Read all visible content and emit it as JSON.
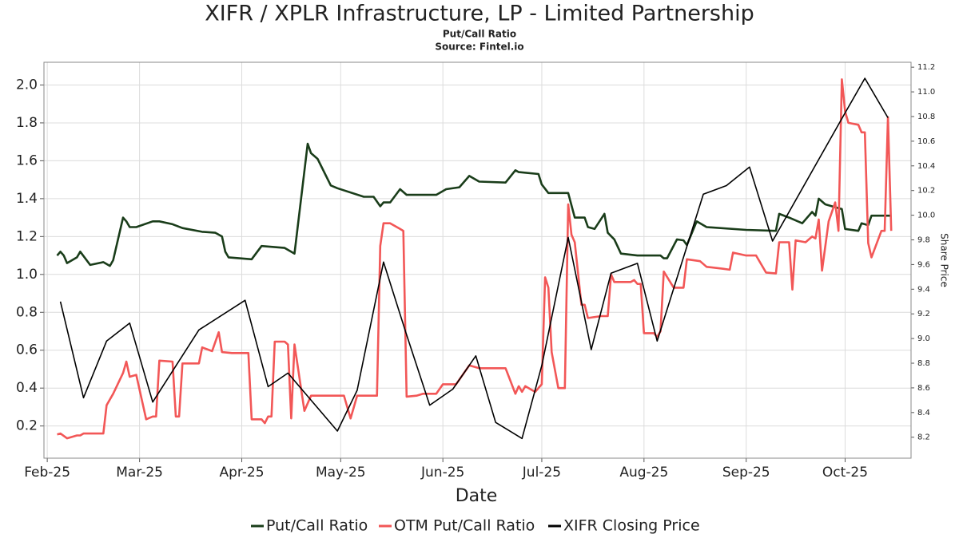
{
  "chart_data": {
    "type": "line",
    "title": "XIFR / XPLR Infrastructure, LP - Limited Partnership",
    "subtitle": "Put/Call Ratio",
    "source": "Source: Fintel.io",
    "x_label": "Date",
    "y2_label": "Share Price",
    "grid": true,
    "legend": "bottom",
    "xlim": [
      -1,
      262
    ],
    "xticks": [
      {
        "value": 0,
        "label": "Feb-25"
      },
      {
        "value": 28,
        "label": "Mar-25"
      },
      {
        "value": 59,
        "label": "Apr-25"
      },
      {
        "value": 89,
        "label": "May-25"
      },
      {
        "value": 120,
        "label": "Jun-25"
      },
      {
        "value": 150,
        "label": "Jul-25"
      },
      {
        "value": 181,
        "label": "Aug-25"
      },
      {
        "value": 212,
        "label": "Sep-25"
      },
      {
        "value": 242,
        "label": "Oct-25"
      }
    ],
    "ylim": [
      0.03,
      2.12
    ],
    "yticks": [
      0.2,
      0.4,
      0.6,
      0.8,
      {
        "value": 1,
        "label": "1.0"
      },
      1.2,
      1.4,
      1.6,
      1.8,
      {
        "value": 2,
        "label": "2.0"
      }
    ],
    "y2lim": [
      8.03,
      11.24
    ],
    "y2ticks": [
      8.2,
      8.4,
      8.6,
      8.8,
      {
        "value": 9,
        "label": "9.0"
      },
      9.2,
      9.4,
      9.6,
      9.8,
      {
        "value": 10,
        "label": "10.0"
      },
      10.2,
      10.4,
      10.6,
      10.8,
      {
        "value": 11,
        "label": "11.0"
      },
      11.2
    ],
    "series": [
      {
        "name": "Put/Call Ratio",
        "color": "#1a3d1a",
        "width": 2.6,
        "x": [
          3,
          4,
          5,
          6,
          9,
          10,
          13,
          17,
          19,
          20,
          23,
          24,
          25,
          27,
          32,
          34,
          38,
          41,
          47,
          51,
          53,
          54,
          55,
          62,
          65,
          72,
          75,
          79,
          80,
          82,
          86,
          88,
          96,
          99,
          101,
          102,
          104,
          107,
          109,
          118,
          121,
          125,
          128,
          131,
          139,
          142,
          143,
          149,
          150,
          152,
          158,
          160,
          163,
          164,
          166,
          169,
          170,
          172,
          174,
          179,
          183,
          186,
          187,
          188,
          191,
          193,
          194,
          197,
          200,
          212,
          221,
          222,
          225,
          229,
          232,
          233,
          234,
          236,
          240,
          241,
          242,
          246,
          247,
          249,
          250,
          256
        ],
        "values": [
          1.1,
          1.12,
          1.1,
          1.06,
          1.09,
          1.12,
          1.05,
          1.065,
          1.045,
          1.075,
          1.3,
          1.28,
          1.25,
          1.25,
          1.28,
          1.28,
          1.265,
          1.245,
          1.225,
          1.22,
          1.2,
          1.12,
          1.09,
          1.08,
          1.15,
          1.14,
          1.11,
          1.69,
          1.64,
          1.61,
          1.47,
          1.455,
          1.41,
          1.41,
          1.36,
          1.38,
          1.38,
          1.45,
          1.42,
          1.42,
          1.45,
          1.46,
          1.52,
          1.49,
          1.485,
          1.55,
          1.54,
          1.53,
          1.475,
          1.43,
          1.43,
          1.3,
          1.3,
          1.25,
          1.24,
          1.32,
          1.22,
          1.185,
          1.11,
          1.1,
          1.1,
          1.1,
          1.085,
          1.085,
          1.185,
          1.18,
          1.155,
          1.28,
          1.25,
          1.235,
          1.23,
          1.32,
          1.3,
          1.27,
          1.33,
          1.31,
          1.4,
          1.37,
          1.35,
          1.345,
          1.24,
          1.23,
          1.27,
          1.26,
          1.31,
          1.31
        ]
      },
      {
        "name": "OTM Put/Call Ratio",
        "color": "#f25757",
        "width": 2.6,
        "x": [
          3,
          4,
          6,
          9,
          10,
          11,
          17,
          18,
          20,
          23,
          24,
          25,
          27,
          30,
          32,
          33,
          34,
          38,
          39,
          40,
          41,
          46,
          47,
          50,
          52,
          53,
          56,
          61,
          62,
          65,
          66,
          67,
          68,
          69,
          72,
          73,
          74,
          75,
          78,
          80,
          90,
          91,
          92,
          94,
          100,
          101,
          102,
          104,
          107,
          108,
          109,
          112,
          114,
          118,
          120,
          124,
          128,
          131,
          139,
          142,
          143,
          144,
          145,
          147,
          148,
          150,
          151,
          152,
          153,
          155,
          157,
          158,
          159,
          160,
          162,
          163,
          164,
          168,
          170,
          171,
          172,
          177,
          178,
          179,
          180,
          181,
          184,
          185,
          186,
          187,
          190,
          191,
          193,
          194,
          198,
          200,
          205,
          207,
          208,
          212,
          215,
          218,
          221,
          222,
          225,
          226,
          227,
          230,
          232,
          233,
          234,
          235,
          237,
          239,
          240,
          241,
          242,
          243,
          246,
          247,
          248,
          249,
          250,
          253,
          254,
          255,
          256
        ],
        "values": [
          0.155,
          0.16,
          0.135,
          0.15,
          0.15,
          0.16,
          0.16,
          0.31,
          0.37,
          0.48,
          0.54,
          0.46,
          0.47,
          0.235,
          0.25,
          0.25,
          0.545,
          0.54,
          0.25,
          0.25,
          0.53,
          0.53,
          0.615,
          0.595,
          0.695,
          0.59,
          0.585,
          0.585,
          0.235,
          0.235,
          0.215,
          0.25,
          0.25,
          0.645,
          0.645,
          0.63,
          0.24,
          0.63,
          0.28,
          0.36,
          0.36,
          0.3,
          0.24,
          0.36,
          0.36,
          1.15,
          1.27,
          1.27,
          1.24,
          1.23,
          0.355,
          0.36,
          0.37,
          0.37,
          0.42,
          0.42,
          0.52,
          0.505,
          0.505,
          0.37,
          0.41,
          0.38,
          0.41,
          0.39,
          0.38,
          0.42,
          0.985,
          0.93,
          0.59,
          0.4,
          0.4,
          1.37,
          1.21,
          1.17,
          0.84,
          0.84,
          0.77,
          0.78,
          0.78,
          1.0,
          0.96,
          0.96,
          0.97,
          0.95,
          0.95,
          0.69,
          0.69,
          0.67,
          0.7,
          1.015,
          0.93,
          0.93,
          0.93,
          1.08,
          1.07,
          1.04,
          1.03,
          1.025,
          1.115,
          1.1,
          1.1,
          1.01,
          1.005,
          1.17,
          1.17,
          0.92,
          1.18,
          1.17,
          1.2,
          1.19,
          1.29,
          1.02,
          1.28,
          1.38,
          1.23,
          2.03,
          1.86,
          1.8,
          1.79,
          1.75,
          1.75,
          1.165,
          1.09,
          1.23,
          1.23,
          1.83,
          1.23
        ]
      },
      {
        "name": "XIFR Closing Price",
        "color": "#000000",
        "width": 1.6,
        "axis": "y2",
        "x": [
          4,
          11,
          18,
          25,
          32,
          46,
          60,
          67,
          73,
          88,
          94,
          102,
          109,
          116,
          123,
          130,
          136,
          144,
          150,
          158,
          165,
          171,
          179,
          185,
          199,
          206,
          213,
          220,
          242,
          248,
          255
        ],
        "values": [
          9.3,
          8.52,
          8.98,
          9.125,
          8.485,
          9.07,
          9.31,
          8.61,
          8.72,
          8.25,
          8.58,
          9.62,
          9.03,
          8.46,
          8.59,
          8.86,
          8.32,
          8.19,
          8.78,
          9.82,
          8.91,
          9.53,
          9.61,
          8.98,
          10.17,
          10.24,
          10.39,
          9.79,
          10.83,
          11.11,
          10.79
        ]
      }
    ]
  }
}
